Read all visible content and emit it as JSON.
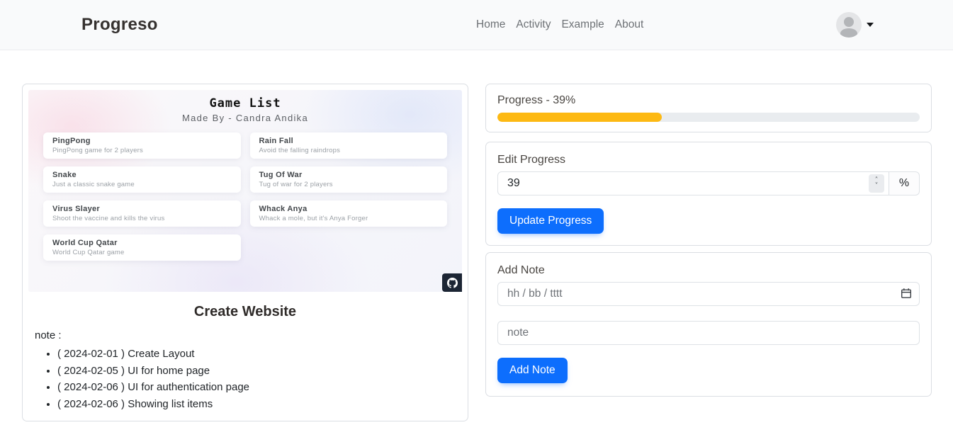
{
  "navbar": {
    "brand": "Progreso",
    "links": [
      {
        "label": "Home"
      },
      {
        "label": "Activity"
      },
      {
        "label": "Example"
      },
      {
        "label": "About"
      }
    ]
  },
  "preview": {
    "title": "Game List",
    "subtitle": "Made By - Candra Andika",
    "games": [
      {
        "name": "PingPong",
        "desc": "PingPong game for 2 players"
      },
      {
        "name": "Rain Fall",
        "desc": "Avoid the falling raindrops"
      },
      {
        "name": "Snake",
        "desc": "Just a classic snake game"
      },
      {
        "name": "Tug Of War",
        "desc": "Tug of war for 2 players"
      },
      {
        "name": "Virus Slayer",
        "desc": "Shoot the vaccine and kills the virus"
      },
      {
        "name": "Whack Anya",
        "desc": "Whack a mole, but it's Anya Forger"
      },
      {
        "name": "World Cup Qatar",
        "desc": "World Cup Qatar game"
      }
    ],
    "github_icon": "github-octocat"
  },
  "activity": {
    "title": "Create Website",
    "note_label": "note :",
    "notes": [
      "( 2024-02-01 ) Create Layout",
      "( 2024-02-05 ) UI for home page",
      "( 2024-02-06 ) UI for authentication page",
      "( 2024-02-06 ) Showing list items"
    ]
  },
  "progress": {
    "label": "Progress - 39%",
    "percent": 39
  },
  "edit_progress": {
    "label": "Edit Progress",
    "value": "39",
    "unit": "%",
    "button": "Update Progress"
  },
  "add_note": {
    "label": "Add Note",
    "date_placeholder": "hh / bb / tttt",
    "note_placeholder": "note",
    "button": "Add Note"
  },
  "colors": {
    "primary": "#0d6efd",
    "progress_fill": "#fdb913"
  }
}
